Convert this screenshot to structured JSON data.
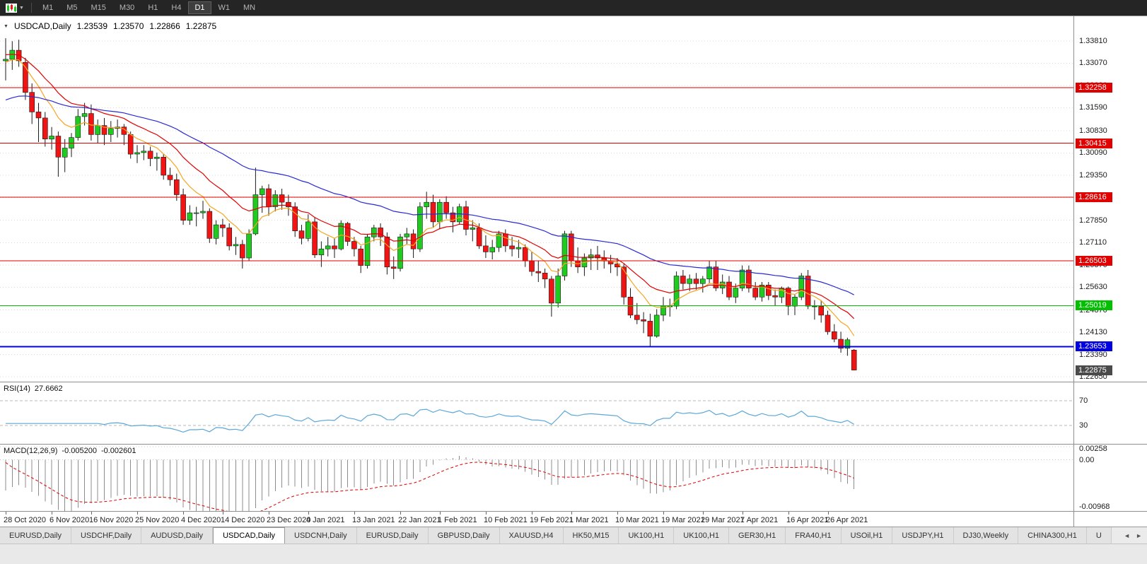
{
  "toolbar": {
    "timeframes": [
      "M1",
      "M5",
      "M15",
      "M30",
      "H1",
      "H4",
      "D1",
      "W1",
      "MN"
    ],
    "active_timeframe": "D1"
  },
  "main_title": {
    "symbol": "USDCAD,Daily",
    "open": "1.23539",
    "high": "1.23570",
    "low": "1.22866",
    "close": "1.22875"
  },
  "rsi_panel": {
    "label": "RSI(14)",
    "value": "27.6662",
    "axis_labels": [
      {
        "text": "70",
        "value": 70
      },
      {
        "text": "30",
        "value": 30
      }
    ]
  },
  "macd_panel": {
    "label": "MACD(12,26,9)",
    "value_macd": "-0.005200",
    "value_signal": "-0.002601",
    "axis_labels": [
      {
        "text": "0.00258",
        "value": 0.00258
      },
      {
        "text": "0.00",
        "value": 0
      },
      {
        "text": "-0.00968",
        "value": -0.00968
      }
    ]
  },
  "tabs": {
    "active_index": 3,
    "items": [
      "EURUSD,Daily",
      "USDCHF,Daily",
      "AUDUSD,Daily",
      "USDCAD,Daily",
      "USDCNH,Daily",
      "EURUSD,Daily",
      "GBPUSD,Daily",
      "XAUUSD,H4",
      "HK50,M15",
      "UK100,H1",
      "UK100,H1",
      "GER30,H1",
      "FRA40,H1",
      "USOil,H1",
      "USDJPY,H1",
      "DJ30,Weekly",
      "CHINA300,H1",
      "U"
    ]
  },
  "chart_data": {
    "type": "candlestick",
    "symbol": "USDCAD",
    "timeframe": "Daily",
    "price_range": [
      1.2249,
      1.3463
    ],
    "price_axis_ticks": [
      1.3381,
      1.3307,
      1.3233,
      1.3159,
      1.3083,
      1.3009,
      1.2935,
      1.2861,
      1.2785,
      1.2711,
      1.2637,
      1.2563,
      1.2487,
      1.2413,
      1.2339,
      1.2265
    ],
    "candle_up_color": "#1fcb1f",
    "candle_down_color": "#f01414",
    "levels": [
      {
        "value": 1.32258,
        "label": "1.32258",
        "color": "#e00000",
        "line_width": 1,
        "draw_line": true
      },
      {
        "value": 1.30415,
        "label": "1.30415",
        "color": "#e00000",
        "line_width": 1,
        "draw_line": true
      },
      {
        "value": 1.28616,
        "label": "1.28616",
        "color": "#e00000",
        "line_width": 1,
        "draw_line": true
      },
      {
        "value": 1.26503,
        "label": "1.26503",
        "color": "#e00000",
        "line_width": 1,
        "draw_line": true
      },
      {
        "value": 1.25019,
        "label": "1.25019",
        "color": "#00c000",
        "line_width": 1,
        "draw_line": true
      },
      {
        "value": 1.23653,
        "label": "1.23653",
        "color": "#0000e0",
        "line_width": 2,
        "draw_line": true
      },
      {
        "value": 1.22875,
        "label": "1.22875",
        "color": "#4a4a4a",
        "line_width": 1,
        "draw_line": false
      }
    ],
    "moving_averages": [
      {
        "name": "fast",
        "period": 8,
        "color": "#f5a623",
        "seed": 1.331
      },
      {
        "name": "mid",
        "period": 17,
        "color": "#e00000",
        "seed": 1.3335
      },
      {
        "name": "slow",
        "period": 45,
        "color": "#2a2ad4",
        "seed": 1.3185
      }
    ],
    "rsi": {
      "period": 14,
      "color": "#5aa7d8",
      "levels": [
        70,
        30
      ],
      "range": [
        0,
        100
      ]
    },
    "macd": {
      "fast": 12,
      "slow": 26,
      "signal": 9,
      "range": [
        -0.01,
        0.003
      ],
      "grid": [
        0.00258,
        0
      ],
      "hist_color": "#8c8c8c",
      "signal_color": "#e00000",
      "seed_fast": 1.3315,
      "seed_slow": 1.3375,
      "seed_signal": -0.0005
    },
    "time_labels": [
      {
        "text": "28 Oct 2020",
        "i": 0
      },
      {
        "text": "6 Nov 2020",
        "i": 7
      },
      {
        "text": "16 Nov 2020",
        "i": 13
      },
      {
        "text": "25 Nov 2020",
        "i": 20
      },
      {
        "text": "4 Dec 2020",
        "i": 27
      },
      {
        "text": "14 Dec 2020",
        "i": 33
      },
      {
        "text": "23 Dec 2020",
        "i": 40
      },
      {
        "text": "4 Jan 2021",
        "i": 46
      },
      {
        "text": "13 Jan 2021",
        "i": 53
      },
      {
        "text": "22 Jan 2021",
        "i": 60
      },
      {
        "text": "1 Feb 2021",
        "i": 66
      },
      {
        "text": "10 Feb 2021",
        "i": 73
      },
      {
        "text": "19 Feb 2021",
        "i": 80
      },
      {
        "text": "1 Mar 2021",
        "i": 86
      },
      {
        "text": "10 Mar 2021",
        "i": 93
      },
      {
        "text": "19 Mar 2021",
        "i": 100
      },
      {
        "text": "29 Mar 2021",
        "i": 106
      },
      {
        "text": "7 Apr 2021",
        "i": 112
      },
      {
        "text": "16 Apr 2021",
        "i": 119
      },
      {
        "text": "26 Apr 2021",
        "i": 125
      }
    ],
    "candles": [
      [
        1.3315,
        1.339,
        1.325,
        1.332
      ],
      [
        1.332,
        1.338,
        1.3285,
        1.335
      ],
      [
        1.335,
        1.3385,
        1.3295,
        1.3315
      ],
      [
        1.331,
        1.3325,
        1.3185,
        1.321
      ],
      [
        1.321,
        1.324,
        1.3105,
        1.3145
      ],
      [
        1.3145,
        1.3175,
        1.3045,
        1.3125
      ],
      [
        1.3125,
        1.3145,
        1.303,
        1.3055
      ],
      [
        1.3055,
        1.3095,
        1.302,
        1.3065
      ],
      [
        1.3065,
        1.308,
        1.293,
        1.2995
      ],
      [
        1.2995,
        1.3055,
        1.2945,
        1.3025
      ],
      [
        1.3025,
        1.3075,
        1.2995,
        1.306
      ],
      [
        1.306,
        1.3155,
        1.305,
        1.313
      ],
      [
        1.313,
        1.3175,
        1.31,
        1.314
      ],
      [
        1.314,
        1.317,
        1.305,
        1.307
      ],
      [
        1.307,
        1.312,
        1.304,
        1.31
      ],
      [
        1.31,
        1.3125,
        1.3035,
        1.307
      ],
      [
        1.307,
        1.3115,
        1.3045,
        1.309
      ],
      [
        1.309,
        1.312,
        1.306,
        1.3095
      ],
      [
        1.3095,
        1.3105,
        1.3035,
        1.307
      ],
      [
        1.307,
        1.308,
        1.299,
        1.3005
      ],
      [
        1.3005,
        1.3035,
        1.2975,
        1.301
      ],
      [
        1.301,
        1.3035,
        1.2985,
        1.3015
      ],
      [
        1.3015,
        1.303,
        1.2965,
        1.299
      ],
      [
        1.299,
        1.301,
        1.295,
        1.2995
      ],
      [
        1.2995,
        1.3005,
        1.292,
        1.2935
      ],
      [
        1.2935,
        1.296,
        1.29,
        1.292
      ],
      [
        1.292,
        1.294,
        1.285,
        1.287
      ],
      [
        1.287,
        1.289,
        1.277,
        1.2785
      ],
      [
        1.2785,
        1.2835,
        1.277,
        1.281
      ],
      [
        1.281,
        1.283,
        1.2765,
        1.281
      ],
      [
        1.281,
        1.285,
        1.279,
        1.2815
      ],
      [
        1.2815,
        1.2825,
        1.271,
        1.2725
      ],
      [
        1.2725,
        1.2785,
        1.2705,
        1.277
      ],
      [
        1.277,
        1.279,
        1.273,
        1.276
      ],
      [
        1.276,
        1.2775,
        1.2685,
        1.27
      ],
      [
        1.27,
        1.273,
        1.267,
        1.2705
      ],
      [
        1.2705,
        1.272,
        1.2625,
        1.266
      ],
      [
        1.266,
        1.2755,
        1.265,
        1.274
      ],
      [
        1.274,
        1.296,
        1.2735,
        1.287
      ],
      [
        1.287,
        1.29,
        1.281,
        1.289
      ],
      [
        1.289,
        1.2905,
        1.28,
        1.283
      ],
      [
        1.283,
        1.2885,
        1.2815,
        1.287
      ],
      [
        1.287,
        1.289,
        1.282,
        1.2845
      ],
      [
        1.2845,
        1.287,
        1.28,
        1.283
      ],
      [
        1.283,
        1.2845,
        1.273,
        1.275
      ],
      [
        1.275,
        1.277,
        1.2705,
        1.2725
      ],
      [
        1.2725,
        1.2805,
        1.2715,
        1.278
      ],
      [
        1.278,
        1.2795,
        1.266,
        1.267
      ],
      [
        1.267,
        1.2715,
        1.263,
        1.269
      ],
      [
        1.269,
        1.273,
        1.2665,
        1.27
      ],
      [
        1.27,
        1.2725,
        1.266,
        1.269
      ],
      [
        1.269,
        1.2785,
        1.2685,
        1.2775
      ],
      [
        1.2775,
        1.278,
        1.27,
        1.2715
      ],
      [
        1.2715,
        1.273,
        1.2665,
        1.269
      ],
      [
        1.269,
        1.27,
        1.261,
        1.2635
      ],
      [
        1.2635,
        1.274,
        1.2625,
        1.273
      ],
      [
        1.273,
        1.277,
        1.2715,
        1.276
      ],
      [
        1.276,
        1.2775,
        1.27,
        1.273
      ],
      [
        1.273,
        1.2745,
        1.2605,
        1.263
      ],
      [
        1.263,
        1.2665,
        1.259,
        1.2625
      ],
      [
        1.2625,
        1.274,
        1.2615,
        1.273
      ],
      [
        1.273,
        1.276,
        1.2705,
        1.274
      ],
      [
        1.274,
        1.2755,
        1.266,
        1.269
      ],
      [
        1.269,
        1.2845,
        1.268,
        1.283
      ],
      [
        1.283,
        1.288,
        1.279,
        1.2845
      ],
      [
        1.2845,
        1.287,
        1.276,
        1.278
      ],
      [
        1.278,
        1.2855,
        1.2755,
        1.2845
      ],
      [
        1.2845,
        1.2865,
        1.279,
        1.281
      ],
      [
        1.281,
        1.283,
        1.2745,
        1.278
      ],
      [
        1.278,
        1.284,
        1.277,
        1.283
      ],
      [
        1.283,
        1.285,
        1.2735,
        1.2755
      ],
      [
        1.2755,
        1.2785,
        1.2715,
        1.276
      ],
      [
        1.276,
        1.2775,
        1.269,
        1.27
      ],
      [
        1.27,
        1.2735,
        1.266,
        1.268
      ],
      [
        1.268,
        1.272,
        1.2655,
        1.2695
      ],
      [
        1.2695,
        1.275,
        1.268,
        1.274
      ],
      [
        1.274,
        1.2755,
        1.268,
        1.27
      ],
      [
        1.27,
        1.273,
        1.2665,
        1.269
      ],
      [
        1.269,
        1.272,
        1.266,
        1.2695
      ],
      [
        1.2695,
        1.2705,
        1.263,
        1.265
      ],
      [
        1.265,
        1.268,
        1.26,
        1.2615
      ],
      [
        1.2615,
        1.265,
        1.258,
        1.261
      ],
      [
        1.261,
        1.2625,
        1.256,
        1.259
      ],
      [
        1.259,
        1.26,
        1.2465,
        1.251
      ],
      [
        1.251,
        1.2625,
        1.2495,
        1.26
      ],
      [
        1.26,
        1.275,
        1.2585,
        1.274
      ],
      [
        1.274,
        1.275,
        1.263,
        1.265
      ],
      [
        1.265,
        1.2695,
        1.261,
        1.263
      ],
      [
        1.263,
        1.2675,
        1.26,
        1.266
      ],
      [
        1.266,
        1.269,
        1.262,
        1.267
      ],
      [
        1.267,
        1.27,
        1.262,
        1.266
      ],
      [
        1.266,
        1.2685,
        1.2625,
        1.265
      ],
      [
        1.265,
        1.267,
        1.261,
        1.264
      ],
      [
        1.264,
        1.266,
        1.26,
        1.263
      ],
      [
        1.263,
        1.264,
        1.2505,
        1.253
      ],
      [
        1.253,
        1.256,
        1.246,
        1.247
      ],
      [
        1.247,
        1.251,
        1.244,
        1.2455
      ],
      [
        1.2455,
        1.248,
        1.241,
        1.245
      ],
      [
        1.245,
        1.2475,
        1.2365,
        1.24
      ],
      [
        1.24,
        1.249,
        1.2395,
        1.247
      ],
      [
        1.247,
        1.253,
        1.245,
        1.25
      ],
      [
        1.25,
        1.2525,
        1.2465,
        1.25
      ],
      [
        1.25,
        1.2615,
        1.249,
        1.26
      ],
      [
        1.26,
        1.262,
        1.2555,
        1.2575
      ],
      [
        1.2575,
        1.2605,
        1.255,
        1.259
      ],
      [
        1.259,
        1.261,
        1.2555,
        1.2575
      ],
      [
        1.2575,
        1.26,
        1.2545,
        1.259
      ],
      [
        1.259,
        1.265,
        1.2575,
        1.263
      ],
      [
        1.263,
        1.265,
        1.255,
        1.256
      ],
      [
        1.256,
        1.2605,
        1.254,
        1.258
      ],
      [
        1.258,
        1.26,
        1.252,
        1.253
      ],
      [
        1.253,
        1.2575,
        1.251,
        1.256
      ],
      [
        1.256,
        1.2635,
        1.255,
        1.262
      ],
      [
        1.262,
        1.2635,
        1.2545,
        1.256
      ],
      [
        1.256,
        1.258,
        1.252,
        1.253
      ],
      [
        1.253,
        1.258,
        1.2515,
        1.257
      ],
      [
        1.257,
        1.258,
        1.252,
        1.2535
      ],
      [
        1.2535,
        1.2555,
        1.25,
        1.253
      ],
      [
        1.253,
        1.2565,
        1.251,
        1.256
      ],
      [
        1.256,
        1.2565,
        1.247,
        1.25
      ],
      [
        1.25,
        1.254,
        1.247,
        1.253
      ],
      [
        1.253,
        1.261,
        1.252,
        1.26
      ],
      [
        1.26,
        1.262,
        1.249,
        1.25
      ],
      [
        1.25,
        1.252,
        1.2455,
        1.25
      ],
      [
        1.25,
        1.252,
        1.2445,
        1.247
      ],
      [
        1.247,
        1.2485,
        1.2405,
        1.2415
      ],
      [
        1.2415,
        1.244,
        1.238,
        1.239
      ],
      [
        1.239,
        1.2415,
        1.2345,
        1.236
      ],
      [
        1.236,
        1.2395,
        1.2335,
        1.2388
      ],
      [
        1.23539,
        1.2357,
        1.22866,
        1.22875
      ]
    ]
  }
}
